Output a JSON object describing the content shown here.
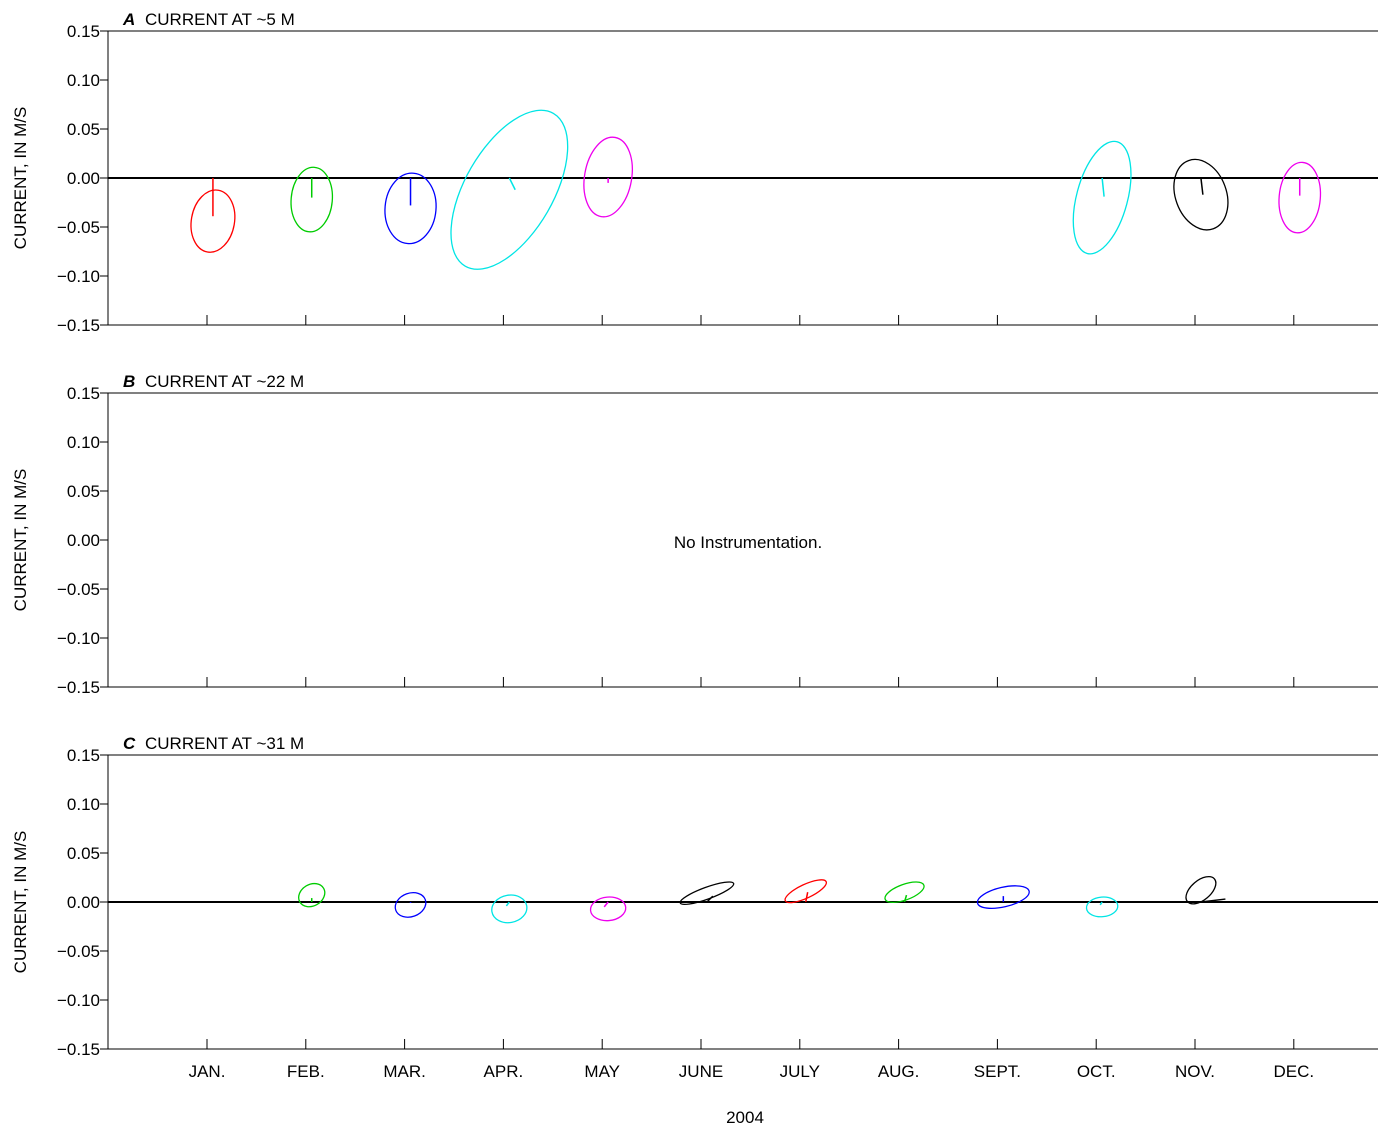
{
  "figure": {
    "xlabel": "2004",
    "months": [
      "JAN.",
      "FEB.",
      "MAR.",
      "APR.",
      "MAY",
      "JUNE",
      "JULY",
      "AUG.",
      "SEPT.",
      "OCT.",
      "NOV.",
      "DEC."
    ]
  },
  "chart_data": [
    {
      "type": "scatter",
      "panel_letter": "A",
      "title": "CURRENT AT ~5 M",
      "ylabel": "CURRENT, IN M/S",
      "ylim": [
        -0.15,
        0.15
      ],
      "yticks": [
        "0.15",
        "0.10",
        "0.05",
        "0.00",
        "−0.05",
        "−0.10",
        "−0.15"
      ],
      "zero_line": true,
      "note": "",
      "series": [
        {
          "month": "JAN.",
          "color": "#ff0000",
          "mean_u": 0.0,
          "mean_v": -0.039,
          "center_v": -0.044,
          "semi_major": 0.032,
          "semi_minor": 0.022,
          "orientation_deg": 100
        },
        {
          "month": "FEB.",
          "color": "#00cc00",
          "mean_u": 0.0,
          "mean_v": -0.02,
          "center_v": -0.022,
          "semi_major": 0.033,
          "semi_minor": 0.021,
          "orientation_deg": 95
        },
        {
          "month": "MAR.",
          "color": "#0000ff",
          "mean_u": 0.0,
          "mean_v": -0.028,
          "center_v": -0.031,
          "semi_major": 0.036,
          "semi_minor": 0.026,
          "orientation_deg": 95
        },
        {
          "month": "APR.",
          "color": "#00e5e5",
          "mean_u": 0.006,
          "mean_v": -0.012,
          "center_v": -0.012,
          "semi_major": 0.09,
          "semi_minor": 0.045,
          "orientation_deg": 120
        },
        {
          "month": "MAY",
          "color": "#ee00ee",
          "mean_u": 0.0,
          "mean_v": -0.005,
          "center_v": 0.001,
          "semi_major": 0.041,
          "semi_minor": 0.024,
          "orientation_deg": 100
        },
        {
          "month": "OCT.",
          "color": "#00e5e5",
          "mean_u": 0.002,
          "mean_v": -0.019,
          "center_v": -0.02,
          "semi_major": 0.059,
          "semi_minor": 0.026,
          "orientation_deg": 105
        },
        {
          "month": "NOV.",
          "color": "#000000",
          "mean_u": 0.002,
          "mean_v": -0.017,
          "center_v": -0.017,
          "semi_major": 0.037,
          "semi_minor": 0.026,
          "orientation_deg": 70
        },
        {
          "month": "DEC.",
          "color": "#ee00ee",
          "mean_u": 0.0,
          "mean_v": -0.018,
          "center_v": -0.02,
          "semi_major": 0.036,
          "semi_minor": 0.021,
          "orientation_deg": 95
        }
      ]
    },
    {
      "type": "scatter",
      "panel_letter": "B",
      "title": "CURRENT AT ~22 M",
      "ylabel": "CURRENT, IN M/S",
      "ylim": [
        -0.15,
        0.15
      ],
      "yticks": [
        "0.15",
        "0.10",
        "0.05",
        "0.00",
        "−0.05",
        "−0.10",
        "−0.15"
      ],
      "zero_line": false,
      "note": "No Instrumentation.",
      "series": []
    },
    {
      "type": "scatter",
      "panel_letter": "C",
      "title": "CURRENT AT ~31 M",
      "ylabel": "CURRENT, IN M/S",
      "ylim": [
        -0.15,
        0.15
      ],
      "yticks": [
        "0.15",
        "0.10",
        "0.05",
        "0.00",
        "−0.05",
        "−0.10",
        "−0.15"
      ],
      "zero_line": true,
      "note": "",
      "series": [
        {
          "month": "FEB.",
          "color": "#00cc00",
          "mean_u": 0.0,
          "mean_v": 0.004,
          "center_v": 0.007,
          "semi_major": 0.014,
          "semi_minor": 0.011,
          "orientation_deg": 150
        },
        {
          "month": "MAR.",
          "color": "#0000ff",
          "mean_u": 0.0,
          "mean_v": -0.001,
          "center_v": -0.003,
          "semi_major": 0.016,
          "semi_minor": 0.012,
          "orientation_deg": 160
        },
        {
          "month": "APR.",
          "color": "#00e5e5",
          "mean_u": -0.003,
          "mean_v": -0.004,
          "center_v": -0.007,
          "semi_major": 0.018,
          "semi_minor": 0.014,
          "orientation_deg": 170
        },
        {
          "month": "MAY",
          "color": "#ee00ee",
          "mean_u": -0.004,
          "mean_v": -0.005,
          "center_v": -0.007,
          "semi_major": 0.018,
          "semi_minor": 0.012,
          "orientation_deg": 175
        },
        {
          "month": "JUNE",
          "color": "#000000",
          "mean_u": 0.006,
          "mean_v": 0.006,
          "center_v": 0.009,
          "semi_major": 0.029,
          "semi_minor": 0.006,
          "orientation_deg": 160
        },
        {
          "month": "JULY",
          "color": "#ff0000",
          "mean_u": 0.002,
          "mean_v": 0.01,
          "center_v": 0.011,
          "semi_major": 0.023,
          "semi_minor": 0.007,
          "orientation_deg": 155
        },
        {
          "month": "AUG.",
          "color": "#00cc00",
          "mean_u": 0.002,
          "mean_v": 0.007,
          "center_v": 0.01,
          "semi_major": 0.021,
          "semi_minor": 0.008,
          "orientation_deg": 160
        },
        {
          "month": "SEPT.",
          "color": "#0000ff",
          "mean_u": 0.0,
          "mean_v": 0.006,
          "center_v": 0.005,
          "semi_major": 0.027,
          "semi_minor": 0.01,
          "orientation_deg": 167
        },
        {
          "month": "OCT.",
          "color": "#00e5e5",
          "mean_u": -0.002,
          "mean_v": -0.003,
          "center_v": -0.005,
          "semi_major": 0.016,
          "semi_minor": 0.01,
          "orientation_deg": 175
        },
        {
          "month": "NOV.",
          "color": "#000000",
          "mean_u": 0.025,
          "mean_v": 0.003,
          "center_v": 0.012,
          "semi_major": 0.018,
          "semi_minor": 0.01,
          "orientation_deg": 140
        }
      ]
    }
  ]
}
